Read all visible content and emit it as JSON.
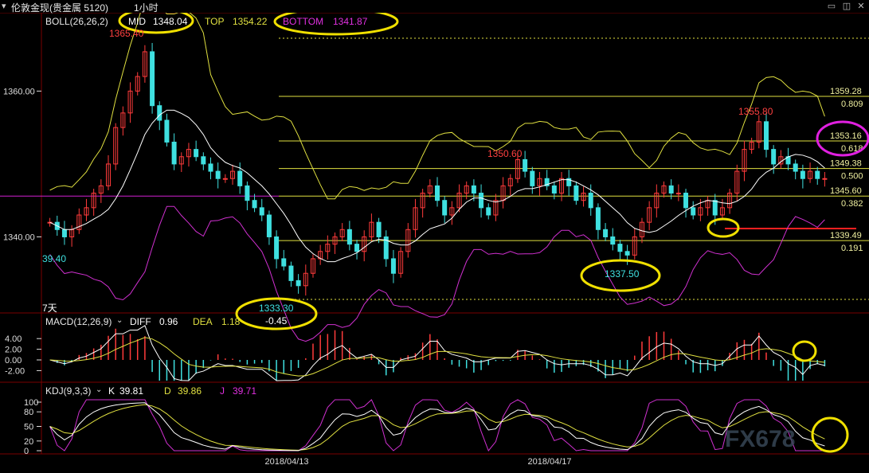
{
  "window": {
    "title": "伦敦金现(贵金属 5120)",
    "period": "1小时"
  },
  "colors": {
    "background": "#000000",
    "up": "#ff3b3b",
    "down": "#3fe0e0",
    "mid": "#ffffff",
    "band": "#e0e040",
    "bottom": "#d030d0",
    "level": "#e0e040",
    "magenta_line": "#d020d0",
    "red_line": "#ff2020",
    "annotation_yellow": "#f0e000",
    "annotation_magenta": "#e020e0"
  },
  "indicators": {
    "boll": {
      "name": "BOLL(26,26,2)",
      "mid_label": "MID",
      "mid_value": "1348.04",
      "top_label": "TOP",
      "top_value": "1354.22",
      "bottom_label": "BOTTOM",
      "bottom_value": "1341.87"
    },
    "macd": {
      "name": "MACD(12,26,9)",
      "diff_label": "DIFF",
      "diff_value": "0.96",
      "dea_label": "DEA",
      "dea_value": "1.18"
    },
    "kdj": {
      "name": "KDJ(9,3,3)",
      "k_label": "K",
      "k_value": "39.81",
      "d_label": "D",
      "d_value": "39.86",
      "j_label": "J",
      "j_value": "39.71"
    }
  },
  "annotations": {
    "high": "1365.40",
    "low_left": "1333.30",
    "low_left_sub": "-0.45",
    "high_mid": "1350.60",
    "low_mid": "1337.50",
    "high_right": "1355.80",
    "left_edge_price": "39.40",
    "left_edge_note": "7天"
  },
  "watermark": "FX678",
  "chart_data": {
    "type": "candlestick",
    "price_axis": {
      "ticks": [
        "1360.00",
        "1340.00"
      ],
      "ylim": [
        1330,
        1369
      ]
    },
    "fib_levels": [
      {
        "price": "1359.28",
        "ratio": "0.809"
      },
      {
        "price": "1353.16",
        "ratio": "0.618"
      },
      {
        "price": "1349.38",
        "ratio": "0.500"
      },
      {
        "price": "1345.60",
        "ratio": "0.382"
      },
      {
        "price": "1339.49",
        "ratio": "0.191"
      }
    ],
    "macd_axis": {
      "ticks": [
        "4.00",
        "2.00",
        "0.00",
        "-2.00"
      ]
    },
    "kdj_axis": {
      "ticks": [
        "100",
        "80",
        "50",
        "20",
        "0"
      ]
    },
    "x_labels": [
      "2018/04/13",
      "2018/04/17"
    ],
    "candles_approx": [
      1342,
      1341,
      1340,
      1341,
      1343,
      1344,
      1346,
      1347,
      1350,
      1355,
      1357,
      1360,
      1362,
      1365.4,
      1358,
      1356,
      1353,
      1350,
      1351,
      1352,
      1351,
      1350,
      1349,
      1348,
      1348,
      1349,
      1347,
      1345,
      1344,
      1343,
      1340,
      1337,
      1336,
      1334,
      1333.3,
      1335,
      1337,
      1338,
      1339,
      1340,
      1341,
      1339,
      1338,
      1340,
      1342,
      1340,
      1337,
      1335,
      1338,
      1341,
      1344,
      1346,
      1347,
      1345,
      1343,
      1344,
      1346,
      1347,
      1346,
      1344,
      1343,
      1345,
      1347,
      1348,
      1350.6,
      1349,
      1347,
      1348,
      1347,
      1346,
      1348,
      1347,
      1345,
      1346,
      1344,
      1341,
      1340,
      1339,
      1338,
      1337.5,
      1340,
      1342,
      1344,
      1346,
      1347,
      1346,
      1346,
      1344,
      1343,
      1344,
      1345,
      1343,
      1344,
      1346,
      1349,
      1352,
      1353,
      1355.8,
      1352,
      1350,
      1351,
      1350,
      1349,
      1348,
      1349,
      1348,
      1348
    ]
  }
}
